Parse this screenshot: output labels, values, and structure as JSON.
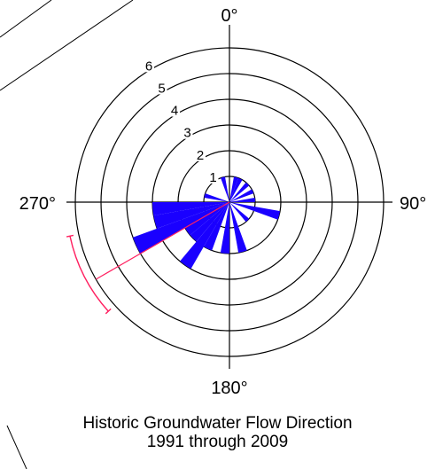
{
  "chart_data": {
    "type": "rose",
    "title_line1": "Historic Groundwater Flow Direction",
    "title_line2": "1991 through 2009",
    "direction_labels": [
      "0°",
      "90°",
      "180°",
      "270°"
    ],
    "ring_labels": [
      "1",
      "2",
      "3",
      "4",
      "5",
      "6"
    ],
    "radial_max": 6,
    "angle_units": "degrees",
    "angle_direction": "clockwise from north",
    "bin_width_deg": 10,
    "bins": [
      {
        "center_deg": 15,
        "count": 1
      },
      {
        "center_deg": 25,
        "count": 1
      },
      {
        "center_deg": 45,
        "count": 1
      },
      {
        "center_deg": 65,
        "count": 1
      },
      {
        "center_deg": 85,
        "count": 1
      },
      {
        "center_deg": 105,
        "count": 2
      },
      {
        "center_deg": 135,
        "count": 1
      },
      {
        "center_deg": 165,
        "count": 2
      },
      {
        "center_deg": 185,
        "count": 2
      },
      {
        "center_deg": 205,
        "count": 2
      },
      {
        "center_deg": 215,
        "count": 3
      },
      {
        "center_deg": 225,
        "count": 2
      },
      {
        "center_deg": 235,
        "count": 2
      },
      {
        "center_deg": 245,
        "count": 4
      },
      {
        "center_deg": 255,
        "count": 3
      },
      {
        "center_deg": 265,
        "count": 3
      },
      {
        "center_deg": 285,
        "count": 1
      },
      {
        "center_deg": 345,
        "count": 1
      }
    ],
    "mean_direction_deg": 240,
    "confidence_arc_deg": [
      228,
      258
    ],
    "colors": {
      "bars": "#1a00ff",
      "mean_line": "#ff2060",
      "rings": "#000000",
      "background_lines": "#000000"
    }
  }
}
